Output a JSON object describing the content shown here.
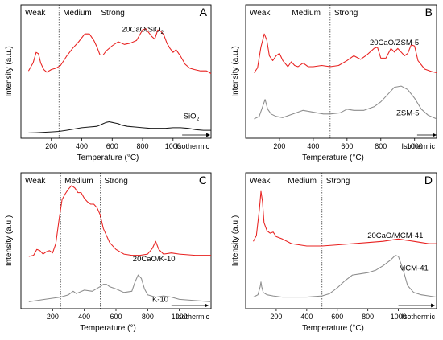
{
  "chart_data": [
    {
      "type": "line",
      "panel_letter": "A",
      "xlabel": "Temperature (°C)",
      "ylabel": "Intensity (a.u.)",
      "xlim": [
        0,
        1250
      ],
      "ylim": [
        -0.3,
        9.8
      ],
      "tick_x": [
        200,
        400,
        600,
        800,
        1000
      ],
      "tick_labels": [
        "200",
        "400",
        "600",
        "800",
        "1000"
      ],
      "regions": [
        "Weak",
        "Medium",
        "Strong"
      ],
      "boundaries": [
        250,
        500
      ],
      "isothermic_label": "Isothermic",
      "isothermic_arrow_x": [
        1060,
        1245
      ],
      "series": [
        {
          "name": "20CaO/SiO₂",
          "name_pre": "20CaO/SiO",
          "name_sub": "2",
          "color": "#e8201f",
          "label_x": 800,
          "label_y": 7.75,
          "x": [
            50,
            80,
            100,
            115,
            130,
            150,
            170,
            200,
            230,
            260,
            300,
            340,
            380,
            420,
            450,
            480,
            500,
            520,
            540,
            560,
            600,
            640,
            680,
            720,
            760,
            780,
            800,
            820,
            860,
            880,
            900,
            920,
            940,
            960,
            980,
            1000,
            1020,
            1050,
            1080,
            1110,
            1140,
            1180,
            1220,
            1250
          ],
          "y": [
            4.8,
            5.4,
            6.2,
            6.1,
            5.4,
            4.9,
            4.7,
            4.9,
            5.0,
            5.2,
            5.9,
            6.5,
            7.0,
            7.6,
            7.6,
            7.1,
            6.6,
            6.0,
            6.0,
            6.3,
            6.7,
            7.0,
            6.8,
            6.9,
            7.1,
            7.5,
            7.9,
            8.0,
            7.4,
            7.2,
            7.9,
            7.8,
            7.5,
            6.9,
            6.5,
            6.2,
            6.4,
            5.9,
            5.3,
            5.0,
            4.9,
            4.8,
            4.8,
            4.6
          ]
        },
        {
          "name": "SiO₂",
          "name_pre": "SiO",
          "name_sub": "2",
          "color": "#1a1a1a",
          "label_x": 1120,
          "label_y": 1.2,
          "x": [
            50,
            100,
            150,
            200,
            250,
            300,
            350,
            400,
            450,
            500,
            520,
            540,
            560,
            580,
            600,
            620,
            640,
            660,
            700,
            750,
            800,
            850,
            900,
            950,
            1000,
            1050,
            1100,
            1150,
            1200,
            1250
          ],
          "y": [
            0.1,
            0.12,
            0.15,
            0.18,
            0.22,
            0.3,
            0.4,
            0.5,
            0.55,
            0.6,
            0.7,
            0.8,
            0.9,
            0.95,
            0.9,
            0.85,
            0.8,
            0.7,
            0.6,
            0.55,
            0.5,
            0.45,
            0.45,
            0.45,
            0.5,
            0.5,
            0.45,
            0.35,
            0.3,
            0.3
          ]
        }
      ]
    },
    {
      "type": "line",
      "panel_letter": "B",
      "xlabel": "Temperature (°C)",
      "ylabel": "Intensity (a.u.)",
      "xlim": [
        0,
        1130
      ],
      "ylim": [
        0,
        11
      ],
      "tick_x": [
        200,
        400,
        600,
        800,
        1000
      ],
      "tick_labels": [
        "200",
        "400",
        "600",
        "800",
        "1000"
      ],
      "regions": [
        "Weak",
        "Medium",
        "Strong"
      ],
      "boundaries": [
        250,
        500
      ],
      "isothermic_label": "Isothermic",
      "isothermic_arrow_x": [
        1015,
        1130
      ],
      "series": [
        {
          "name": "20CaO/ZSM-5",
          "name_pre": "20CaO/ZSM-5",
          "name_sub": "",
          "color": "#e8201f",
          "label_x": 880,
          "label_y": 7.7,
          "x": [
            50,
            70,
            90,
            110,
            125,
            140,
            160,
            180,
            200,
            220,
            250,
            270,
            290,
            310,
            340,
            370,
            400,
            450,
            500,
            550,
            600,
            640,
            680,
            720,
            760,
            780,
            800,
            830,
            860,
            880,
            900,
            940,
            960,
            980,
            1000,
            1020,
            1060,
            1100,
            1130
          ],
          "y": [
            5.4,
            5.8,
            7.5,
            8.6,
            8.1,
            6.8,
            6.4,
            6.8,
            7.0,
            6.4,
            5.9,
            6.3,
            6.0,
            5.9,
            6.2,
            5.9,
            5.9,
            6.0,
            5.9,
            6.0,
            6.4,
            6.8,
            6.5,
            6.9,
            7.4,
            7.5,
            6.6,
            6.6,
            7.4,
            7.1,
            7.4,
            6.8,
            7.0,
            7.7,
            7.6,
            6.4,
            5.7,
            5.5,
            5.4
          ]
        },
        {
          "name": "ZSM-5",
          "name_pre": "ZSM-5",
          "name_sub": "",
          "color": "#8c8c8c",
          "label_x": 960,
          "label_y": 1.9,
          "x": [
            50,
            80,
            100,
            115,
            130,
            150,
            180,
            220,
            260,
            300,
            340,
            380,
            420,
            460,
            500,
            560,
            600,
            640,
            700,
            760,
            800,
            840,
            880,
            920,
            960,
            1000,
            1040,
            1080,
            1130
          ],
          "y": [
            1.6,
            1.8,
            2.6,
            3.2,
            2.4,
            2.0,
            1.8,
            1.7,
            1.9,
            2.1,
            2.3,
            2.2,
            2.1,
            2.0,
            2.0,
            2.1,
            2.4,
            2.3,
            2.3,
            2.6,
            3.0,
            3.6,
            4.2,
            4.3,
            4.0,
            3.3,
            2.4,
            1.9,
            1.6
          ]
        }
      ]
    },
    {
      "type": "line",
      "panel_letter": "C",
      "xlabel": "Temperature (°)",
      "ylabel": "Intensity (a.u.)",
      "xlim": [
        0,
        1200
      ],
      "ylim": [
        0,
        11.7
      ],
      "tick_x": [
        200,
        400,
        600,
        800,
        1000
      ],
      "tick_labels": [
        "200",
        "400",
        "600",
        "800",
        "1000"
      ],
      "regions": [
        "Weak",
        "Medium",
        "Strong"
      ],
      "boundaries": [
        250,
        500
      ],
      "isothermic_label": "Isothermic",
      "isothermic_arrow_x": [
        950,
        1185
      ],
      "series": [
        {
          "name": "20CaO/K-10",
          "name_pre": "20CaO/K-10",
          "name_sub": "",
          "color": "#e8201f",
          "label_x": 840,
          "label_y": 4.1,
          "x": [
            50,
            80,
            100,
            120,
            140,
            160,
            180,
            200,
            220,
            240,
            260,
            280,
            300,
            320,
            340,
            360,
            380,
            400,
            420,
            440,
            460,
            480,
            500,
            520,
            560,
            600,
            650,
            700,
            750,
            800,
            830,
            850,
            870,
            900,
            950,
            1000,
            1100,
            1200
          ],
          "y": [
            4.5,
            4.6,
            5.1,
            5.0,
            4.7,
            4.9,
            5.0,
            4.8,
            5.6,
            7.6,
            9.4,
            9.9,
            10.3,
            10.6,
            10.4,
            10.0,
            10.0,
            9.5,
            9.2,
            9.0,
            9.0,
            8.7,
            8.1,
            6.9,
            5.7,
            5.1,
            4.7,
            4.6,
            4.6,
            4.7,
            5.2,
            5.8,
            5.1,
            4.7,
            4.8,
            4.7,
            4.6,
            4.6
          ]
        },
        {
          "name": "K-10",
          "name_pre": "K-10",
          "name_sub": "",
          "color": "#8c8c8c",
          "label_x": 880,
          "label_y": 0.6,
          "x": [
            50,
            100,
            150,
            200,
            250,
            300,
            330,
            350,
            400,
            450,
            500,
            520,
            540,
            560,
            600,
            650,
            700,
            720,
            740,
            760,
            780,
            800,
            850,
            900,
            950,
            1000,
            1100,
            1200
          ],
          "y": [
            0.6,
            0.7,
            0.8,
            0.9,
            1.0,
            1.2,
            1.5,
            1.3,
            1.6,
            1.5,
            1.9,
            2.1,
            2.1,
            1.9,
            1.7,
            1.4,
            1.5,
            2.3,
            2.9,
            2.6,
            1.7,
            1.2,
            1.0,
            1.1,
            1.0,
            0.8,
            0.7,
            0.6
          ]
        }
      ]
    },
    {
      "type": "line",
      "panel_letter": "D",
      "xlabel": "Temperature (°C)",
      "ylabel": "Intensity (a.u.)",
      "xlim": [
        0,
        1250
      ],
      "ylim": [
        0,
        11.7
      ],
      "tick_x": [
        200,
        400,
        600,
        800,
        1000
      ],
      "tick_labels": [
        "200",
        "400",
        "600",
        "800",
        "1000"
      ],
      "regions": [
        "Weak",
        "Medium",
        "Strong"
      ],
      "boundaries": [
        250,
        500
      ],
      "isothermic_label": "Isothermic",
      "isothermic_arrow_x": [
        1000,
        1240
      ],
      "series": [
        {
          "name": "20CaO/MCM-41",
          "name_pre": "20CaO/MCM-41",
          "name_sub": "",
          "color": "#e8201f",
          "label_x": 980,
          "label_y": 6.1,
          "x": [
            50,
            70,
            90,
            100,
            110,
            120,
            140,
            160,
            180,
            200,
            240,
            300,
            400,
            500,
            600,
            700,
            800,
            900,
            1000,
            1050,
            1100,
            1150,
            1200,
            1250
          ],
          "y": [
            5.8,
            6.3,
            8.6,
            10.1,
            9.2,
            7.4,
            6.7,
            6.5,
            6.6,
            6.2,
            6.0,
            5.6,
            5.4,
            5.4,
            5.5,
            5.6,
            5.7,
            5.8,
            6.0,
            5.9,
            5.8,
            5.7,
            5.6,
            5.6
          ]
        },
        {
          "name": "MCM-41",
          "name_pre": "MCM-41",
          "name_sub": "",
          "color": "#8c8c8c",
          "label_x": 1100,
          "label_y": 3.3,
          "x": [
            50,
            80,
            95,
            100,
            105,
            115,
            140,
            180,
            240,
            300,
            400,
            500,
            550,
            600,
            650,
            700,
            750,
            800,
            850,
            900,
            950,
            980,
            1000,
            1030,
            1060,
            1100,
            1150,
            1200,
            1250
          ],
          "y": [
            1.0,
            1.2,
            1.9,
            2.3,
            1.9,
            1.4,
            1.2,
            1.1,
            1.0,
            1.0,
            1.0,
            1.1,
            1.3,
            1.8,
            2.4,
            2.9,
            3.0,
            3.1,
            3.3,
            3.7,
            4.2,
            4.6,
            4.5,
            3.4,
            2.0,
            1.4,
            1.2,
            1.1,
            1.0
          ]
        }
      ]
    }
  ]
}
